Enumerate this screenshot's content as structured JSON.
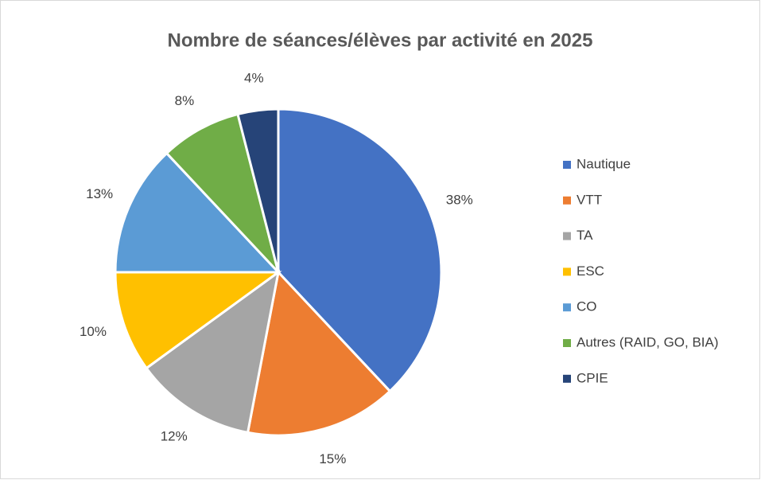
{
  "chart_data": {
    "type": "pie",
    "title": "Nombre de séances/élèves par activité en 2025",
    "categories": [
      "Nautique",
      "VTT",
      "TA",
      "ESC",
      "CO",
      "Autres (RAID, GO, BIA)",
      "CPIE"
    ],
    "values": [
      38,
      15,
      12,
      10,
      13,
      8,
      4
    ],
    "value_labels": [
      "38%",
      "15%",
      "12%",
      "10%",
      "13%",
      "8%",
      "4%"
    ],
    "colors": [
      "#4472c4",
      "#ed7d31",
      "#a5a5a5",
      "#ffc000",
      "#5b9bd5",
      "#70ad47",
      "#264478"
    ],
    "legend": "right"
  }
}
